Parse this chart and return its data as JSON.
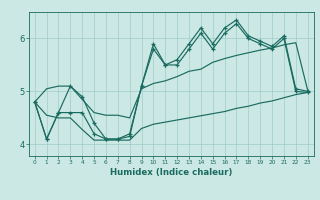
{
  "xlabel": "Humidex (Indice chaleur)",
  "bg_color": "#cce8e4",
  "grid_color": "#a0ccc8",
  "line_color": "#1a6b60",
  "hours": [
    0,
    1,
    2,
    3,
    4,
    5,
    6,
    7,
    8,
    9,
    10,
    11,
    12,
    13,
    14,
    15,
    16,
    17,
    18,
    19,
    20,
    21,
    22,
    23
  ],
  "line_jagged1": [
    4.8,
    4.1,
    4.6,
    5.1,
    4.9,
    4.4,
    4.1,
    4.1,
    4.2,
    5.1,
    5.9,
    5.5,
    5.6,
    5.9,
    6.2,
    5.9,
    6.2,
    6.35,
    6.05,
    5.95,
    5.85,
    6.05,
    5.05,
    5.0
  ],
  "line_smooth_up": [
    4.8,
    5.05,
    5.1,
    5.1,
    4.85,
    4.6,
    4.55,
    4.55,
    4.5,
    5.05,
    5.15,
    5.2,
    5.28,
    5.38,
    5.42,
    5.55,
    5.62,
    5.68,
    5.73,
    5.78,
    5.82,
    5.88,
    5.92,
    5.02
  ],
  "line_smooth_low": [
    4.8,
    4.55,
    4.5,
    4.5,
    4.28,
    4.08,
    4.08,
    4.08,
    4.08,
    4.3,
    4.38,
    4.42,
    4.46,
    4.5,
    4.54,
    4.58,
    4.62,
    4.68,
    4.72,
    4.78,
    4.82,
    4.88,
    4.94,
    4.98
  ],
  "line_jagged2": [
    4.8,
    4.1,
    4.6,
    4.6,
    4.6,
    4.2,
    4.1,
    4.1,
    4.15,
    5.1,
    5.8,
    5.5,
    5.5,
    5.8,
    6.1,
    5.8,
    6.1,
    6.28,
    6.0,
    5.9,
    5.8,
    6.0,
    5.0,
    4.98
  ],
  "x_ticks": [
    0,
    1,
    2,
    3,
    4,
    5,
    6,
    7,
    8,
    9,
    10,
    11,
    12,
    13,
    14,
    15,
    16,
    17,
    18,
    19,
    20,
    21,
    22,
    23
  ],
  "y_ticks": [
    4,
    5,
    6
  ],
  "ylim": [
    3.78,
    6.5
  ],
  "xlim": [
    -0.5,
    23.5
  ]
}
